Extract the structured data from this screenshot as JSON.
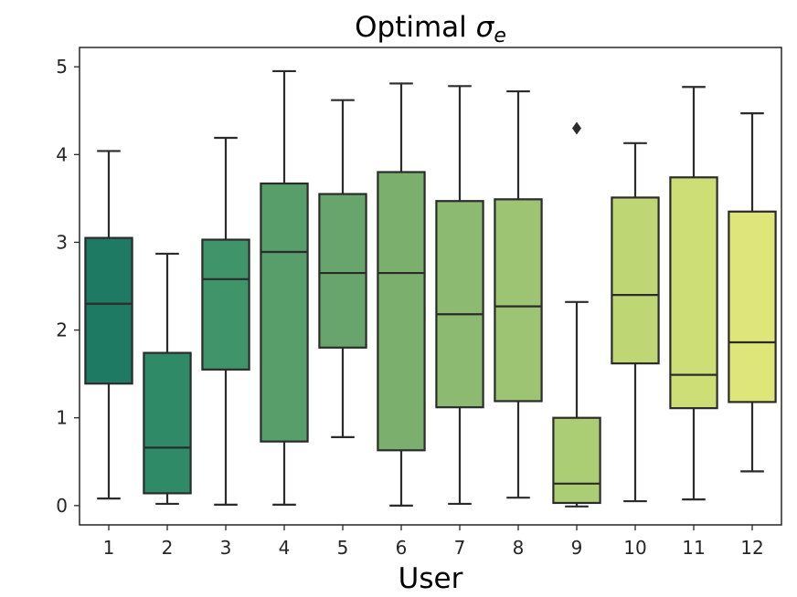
{
  "chart_data": {
    "type": "boxplot",
    "title_main": "Optimal ",
    "title_symbol": "σ",
    "title_subscript": "e",
    "xlabel": "User",
    "ylabel": "",
    "ylim": [
      -0.22,
      5.22
    ],
    "yticks": [
      0,
      1,
      2,
      3,
      4,
      5
    ],
    "ytick_labels": [
      "0",
      "1",
      "2",
      "3",
      "4",
      "5"
    ],
    "categories": [
      "1",
      "2",
      "3",
      "4",
      "5",
      "6",
      "7",
      "8",
      "9",
      "10",
      "11",
      "12"
    ],
    "boxes": [
      {
        "user": "1",
        "whislo": 0.08,
        "q1": 1.39,
        "median": 2.3,
        "q3": 3.05,
        "whishi": 4.04,
        "fliers": [],
        "color": "#1f7a63"
      },
      {
        "user": "2",
        "whislo": 0.02,
        "q1": 0.14,
        "median": 0.66,
        "q3": 1.74,
        "whishi": 2.87,
        "fliers": [],
        "color": "#2f8b67"
      },
      {
        "user": "3",
        "whislo": 0.01,
        "q1": 1.55,
        "median": 2.58,
        "q3": 3.03,
        "whishi": 4.19,
        "fliers": [],
        "color": "#3f9469"
      },
      {
        "user": "4",
        "whislo": 0.01,
        "q1": 0.73,
        "median": 2.89,
        "q3": 3.67,
        "whishi": 4.95,
        "fliers": [],
        "color": "#579e6b"
      },
      {
        "user": "5",
        "whislo": 0.78,
        "q1": 1.8,
        "median": 2.65,
        "q3": 3.55,
        "whishi": 4.62,
        "fliers": [],
        "color": "#67a56d"
      },
      {
        "user": "6",
        "whislo": 0.0,
        "q1": 0.63,
        "median": 2.65,
        "q3": 3.8,
        "whishi": 4.81,
        "fliers": [],
        "color": "#7aaf6e"
      },
      {
        "user": "7",
        "whislo": 0.02,
        "q1": 1.12,
        "median": 2.18,
        "q3": 3.47,
        "whishi": 4.78,
        "fliers": [],
        "color": "#8cba70"
      },
      {
        "user": "8",
        "whislo": 0.09,
        "q1": 1.19,
        "median": 2.27,
        "q3": 3.49,
        "whishi": 4.72,
        "fliers": [],
        "color": "#9cc472"
      },
      {
        "user": "9",
        "whislo": -0.01,
        "q1": 0.03,
        "median": 0.25,
        "q3": 1.0,
        "whishi": 2.32,
        "fliers": [
          4.3
        ],
        "color": "#abcd73"
      },
      {
        "user": "10",
        "whislo": 0.05,
        "q1": 1.62,
        "median": 2.4,
        "q3": 3.51,
        "whishi": 4.13,
        "fliers": [],
        "color": "#bed673"
      },
      {
        "user": "11",
        "whislo": 0.07,
        "q1": 1.11,
        "median": 1.49,
        "q3": 3.74,
        "whishi": 4.77,
        "fliers": [],
        "color": "#cede77"
      },
      {
        "user": "12",
        "whislo": 0.39,
        "q1": 1.18,
        "median": 1.86,
        "q3": 3.35,
        "whishi": 4.47,
        "fliers": [],
        "color": "#dfe679"
      }
    ]
  }
}
